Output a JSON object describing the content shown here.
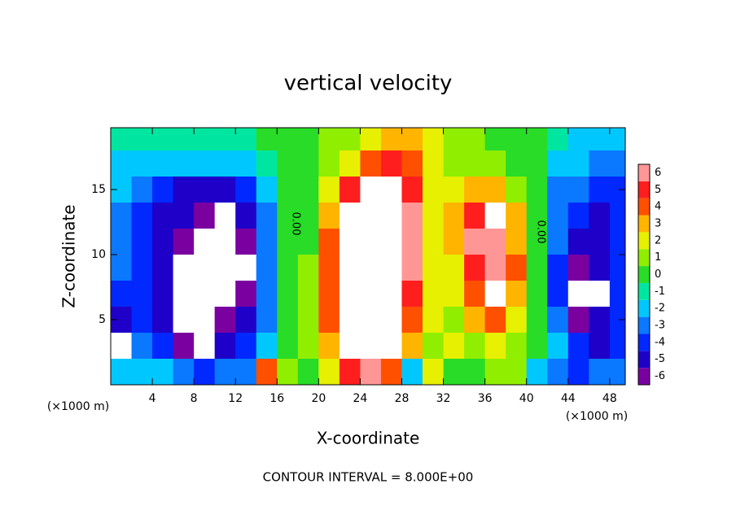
{
  "chart_data": {
    "type": "heatmap",
    "title": "vertical velocity",
    "xlabel": "X-coordinate",
    "ylabel": "Z-coordinate",
    "x": [
      1,
      3,
      5,
      7,
      9,
      11,
      13,
      15,
      17,
      19,
      21,
      23,
      25,
      27,
      29,
      31,
      33,
      35,
      37,
      39,
      41,
      43,
      45,
      47,
      49
    ],
    "y": [
      19,
      17,
      15,
      13,
      11,
      9,
      7,
      5,
      3,
      1
    ],
    "z": [
      [
        -1,
        -1,
        -1,
        -1,
        -1,
        -1,
        -1,
        0,
        0,
        0,
        1,
        1,
        2,
        3,
        3,
        2,
        1,
        1,
        0,
        0,
        0,
        -1,
        -2,
        -2,
        -2
      ],
      [
        -2,
        -2,
        -2,
        -2,
        -2,
        -2,
        -2,
        -1,
        0,
        0,
        1,
        2,
        4,
        5,
        4,
        2,
        1,
        1,
        1,
        0,
        0,
        -2,
        -2,
        -3,
        -3
      ],
      [
        -2,
        -3,
        -4,
        -5,
        -5,
        -5,
        -4,
        -2,
        0,
        0,
        2,
        5,
        7,
        7,
        5,
        2,
        2,
        3,
        3,
        1,
        0,
        -3,
        -3,
        -4,
        -4
      ],
      [
        -3,
        -4,
        -5,
        -5,
        -6,
        -8,
        -5,
        -3,
        0,
        0,
        3,
        7,
        8,
        8,
        6,
        2,
        3,
        5,
        7,
        3,
        0,
        -3,
        -4,
        -5,
        -4
      ],
      [
        -3,
        -4,
        -5,
        -6,
        -8,
        -8,
        -6,
        -3,
        0,
        0,
        4,
        8,
        9,
        9,
        6,
        2,
        3,
        6,
        6,
        3,
        0,
        -3,
        -5,
        -5,
        -4
      ],
      [
        -3,
        -4,
        -5,
        -8,
        -8,
        -8,
        -7,
        -3,
        0,
        1,
        4,
        8,
        9,
        9,
        6,
        2,
        2,
        5,
        6,
        4,
        0,
        -4,
        -6,
        -5,
        -4
      ],
      [
        -4,
        -4,
        -5,
        -8,
        -8,
        -7,
        -6,
        -3,
        0,
        1,
        4,
        8,
        9,
        9,
        5,
        2,
        2,
        4,
        7,
        3,
        0,
        -4,
        -7,
        -7,
        -4
      ],
      [
        -5,
        -4,
        -5,
        -8,
        -8,
        -6,
        -5,
        -3,
        0,
        1,
        4,
        7,
        8,
        8,
        4,
        2,
        1,
        3,
        4,
        2,
        0,
        -3,
        -6,
        -5,
        -4
      ],
      [
        -7,
        -3,
        -4,
        -6,
        -7,
        -5,
        -4,
        -2,
        0,
        1,
        3,
        7,
        8,
        8,
        3,
        1,
        2,
        1,
        2,
        1,
        0,
        -2,
        -4,
        -5,
        -4
      ],
      [
        -2,
        -2,
        -2,
        -3,
        -4,
        -3,
        -3,
        4,
        1,
        0,
        2,
        5,
        6,
        4,
        -2,
        2,
        0,
        0,
        1,
        1,
        -2,
        -3,
        -4,
        -3,
        -3
      ]
    ],
    "xlim": [
      0,
      49.5
    ],
    "ylim": [
      0,
      19.75
    ],
    "xticks": [
      4,
      8,
      12,
      16,
      20,
      24,
      28,
      32,
      36,
      40,
      44,
      48
    ],
    "yticks": [
      5,
      10,
      15
    ],
    "colorbar": {
      "ticks": [
        -6,
        -5,
        -4,
        -3,
        -2,
        -1,
        0,
        1,
        2,
        3,
        4,
        5,
        6
      ],
      "colors": [
        "#7a00a0",
        "#1e00c8",
        "#0028ff",
        "#0a78ff",
        "#00c8ff",
        "#00e6a0",
        "#28dc28",
        "#90ee00",
        "#e6f000",
        "#ffb400",
        "#ff5000",
        "#ff1e1e",
        "#ff9696"
      ]
    },
    "out_of_range_color": "#ffffff",
    "annotations": [
      "(×1000 m)",
      "(×1000 m)",
      "0.00",
      "0.00",
      "CONTOUR INTERVAL = 8.000E+00"
    ]
  }
}
